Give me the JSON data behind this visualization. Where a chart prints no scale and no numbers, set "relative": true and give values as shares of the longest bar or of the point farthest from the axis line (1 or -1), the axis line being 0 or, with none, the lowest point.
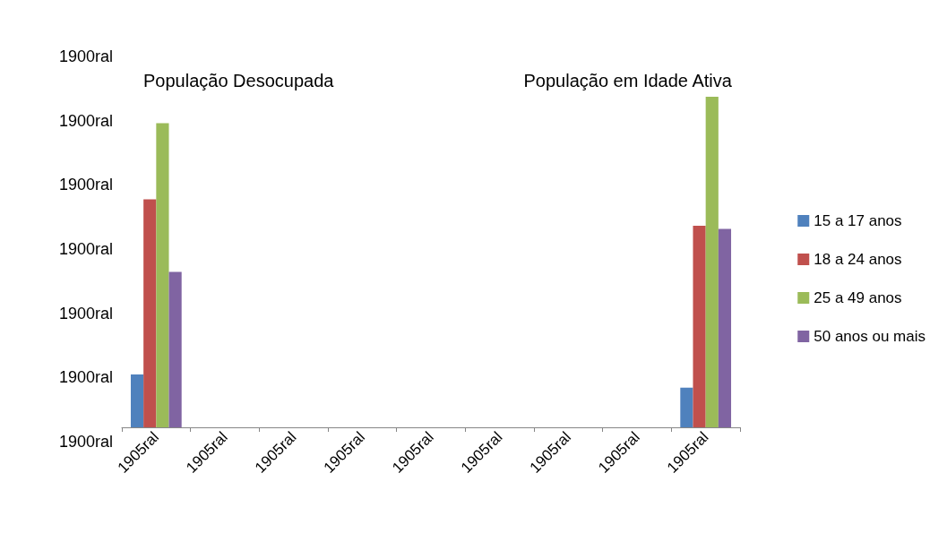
{
  "chart_data": {
    "type": "bar",
    "relative": true,
    "categories": [
      "1905ral",
      "1905ral",
      "1905ral",
      "1905ral",
      "1905ral",
      "1905ral",
      "1905ral",
      "1905ral",
      "1905ral"
    ],
    "series": [
      {
        "name": "15 a 17 anos",
        "color": "#4f81bd",
        "values": [
          0.16,
          null,
          null,
          null,
          null,
          null,
          null,
          null,
          0.12
        ]
      },
      {
        "name": "18 a 24 anos",
        "color": "#c0504d",
        "values": [
          0.69,
          null,
          null,
          null,
          null,
          null,
          null,
          null,
          0.61
        ]
      },
      {
        "name": "25 a 49 anos",
        "color": "#9bbb59",
        "values": [
          0.92,
          null,
          null,
          null,
          null,
          null,
          null,
          null,
          1
        ]
      },
      {
        "name": "50 anos ou mais",
        "color": "#8064a2",
        "values": [
          0.47,
          null,
          null,
          null,
          null,
          null,
          null,
          null,
          0.6
        ]
      }
    ],
    "annotations": [
      "População Desocupada",
      "População em Idade Ativa",
      "1900ral",
      "1900ral",
      "1900ral",
      "1900ral",
      "1900ral",
      "1900ral",
      "1900ral"
    ],
    "legend": "right"
  }
}
